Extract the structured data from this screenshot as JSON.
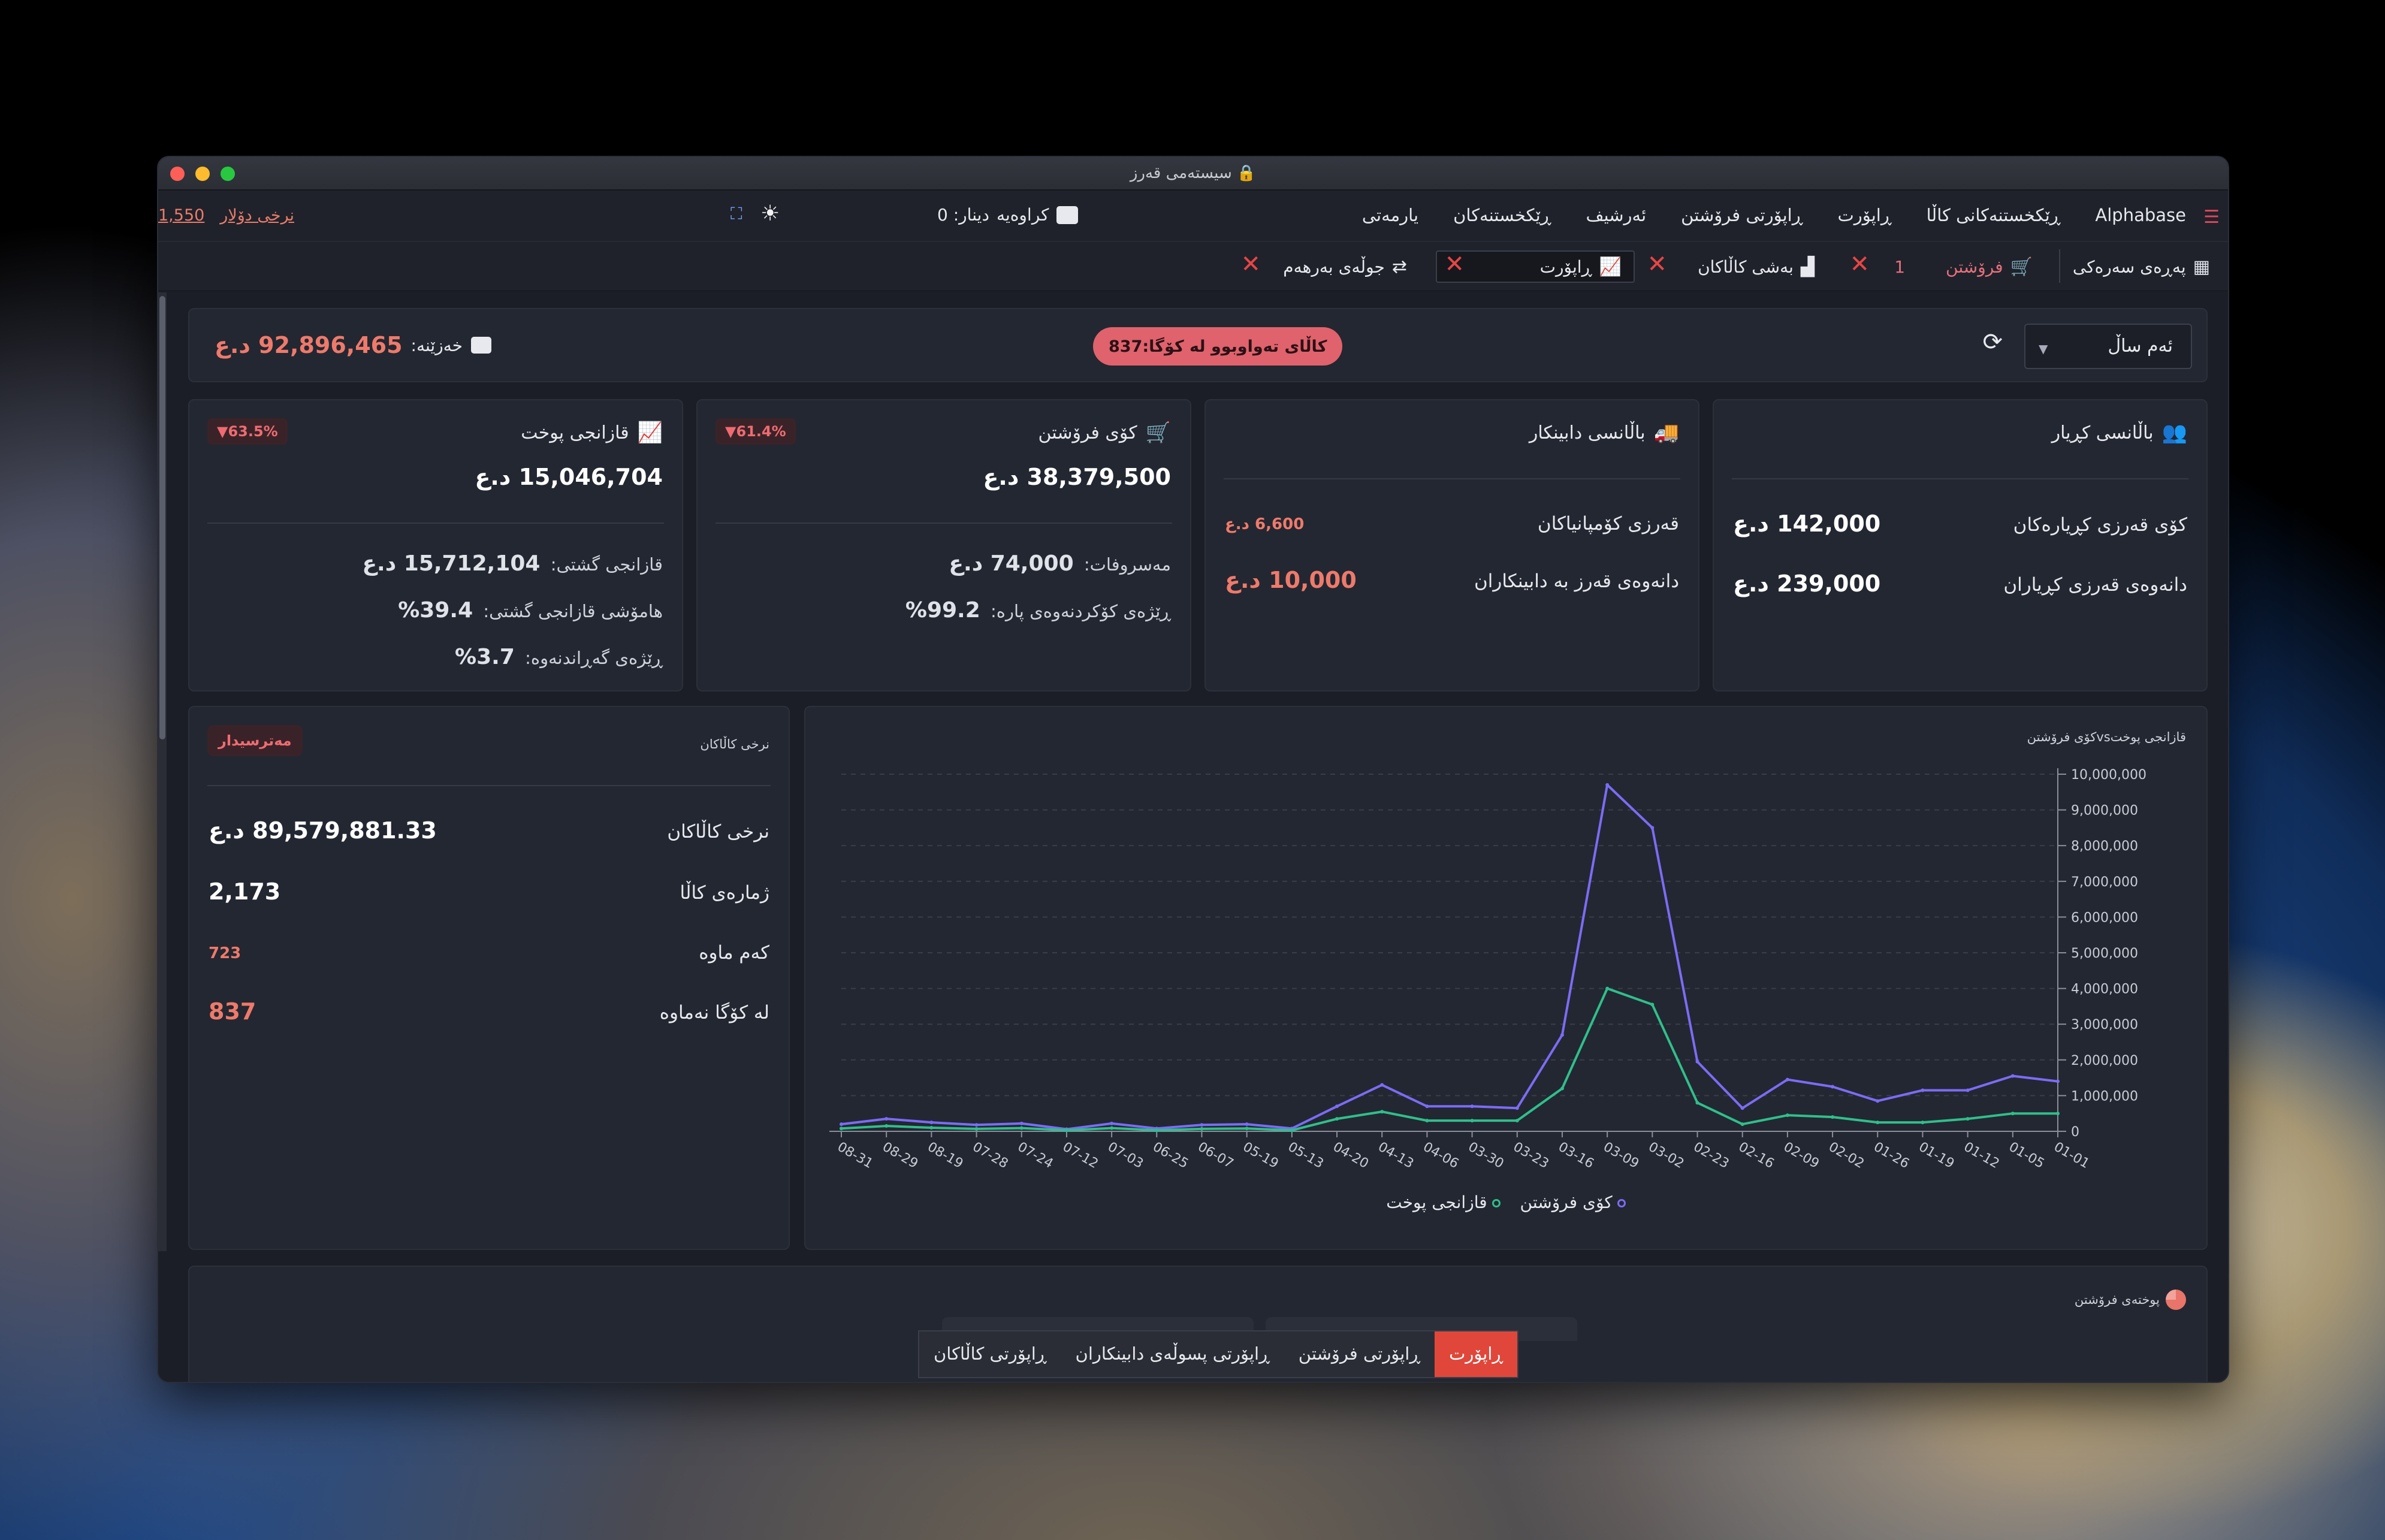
{
  "window": {
    "title": "سیستەمی قەرز"
  },
  "nav": {
    "brand": "Alphabase",
    "items": [
      "ڕێکخستنەکانی کاڵا",
      "ڕاپۆرت",
      "ڕاپۆرتی فرۆشتن",
      "ئەرشیف",
      "ڕێکخستنەکان",
      "یارمەتی"
    ],
    "cashbox_label": "کراوەیە",
    "cashbox_value": "دینار: 0",
    "dollar_label": "نرخی دۆلار",
    "dollar_value": "1,550"
  },
  "tabs": {
    "home": "پەڕەی سەرەکی",
    "sales": "فرۆشتن",
    "sales_count": "1",
    "goods": "بەشی کاڵاکان",
    "report": "ڕاپۆرت",
    "movement": "جوڵەی بەرهەم"
  },
  "summary": {
    "period": "ئەم ساڵ",
    "out_of_stock": "کاڵای تەواوبوو لە کۆگا:837",
    "treasury_label": "خەزێنە:",
    "treasury_value": "92,896,465 د.ع"
  },
  "cards": {
    "customer_balance": {
      "title": "باڵانسی کڕیار",
      "rows": [
        {
          "label": "کۆی قەرزی کڕیارەکان",
          "value": "142,000 د.ع"
        },
        {
          "label": "دانەوەی قەرزی کڕیاران",
          "value": "239,000 د.ع"
        }
      ]
    },
    "supplier_balance": {
      "title": "باڵانسی دابینکار",
      "rows": [
        {
          "label": "قەرزی کۆمپانیاکان",
          "value": "6,600 د.ع"
        },
        {
          "label": "دانەوەی قەرز بە دابینکاران",
          "value": "10,000 د.ع"
        }
      ]
    },
    "total_sales": {
      "title": "کۆی فرۆشتن",
      "badge": "▼61.4%",
      "main": "38,379,500 د.ع",
      "expenses_label": "مەسروفات:",
      "expenses_value": "74,000 د.ع",
      "collection_label": "ڕێژەی کۆکردنەوەی پارە:",
      "collection_value": "99.2%"
    },
    "net_profit": {
      "title": "قازانجی پوخت",
      "badge": "▼63.5%",
      "main": "15,046,704 د.ع",
      "gross_label": "قازانجی گشتی:",
      "gross_value": "15,712,104 د.ع",
      "margin_label": "هامۆشی قازانجی گشتی:",
      "margin_value": "39.4%",
      "return_label": "ڕێژەی گەڕاندنەوە:",
      "return_value": "3.7%"
    }
  },
  "goods": {
    "title": "نرخی کاڵاکان",
    "badge": "مەترسیدار",
    "rows": [
      {
        "label": "نرخی کاڵاکان",
        "value": "89,579,881.33 د.ع"
      },
      {
        "label": "ژمارەی کاڵا",
        "value": "2,173"
      },
      {
        "label": "کەم ماوە",
        "value": "723"
      },
      {
        "label": "لە کۆگا نەماوە",
        "value": "837"
      }
    ]
  },
  "chart_data": {
    "type": "line",
    "title": "کۆی فرۆشتنvsقازانجی پوخت",
    "x": [
      "08-31",
      "08-29",
      "08-19",
      "07-28",
      "07-24",
      "07-12",
      "07-03",
      "06-25",
      "06-07",
      "05-19",
      "05-13",
      "04-20",
      "04-13",
      "04-06",
      "03-30",
      "03-23",
      "03-16",
      "03-09",
      "03-02",
      "02-23",
      "02-16",
      "02-09",
      "02-02",
      "01-26",
      "01-19",
      "01-12",
      "01-05",
      "01-01"
    ],
    "series": [
      {
        "name": "کۆی فرۆشتن",
        "color": "#7b6cf6",
        "values": [
          200000,
          350000,
          250000,
          180000,
          220000,
          60000,
          220000,
          80000,
          180000,
          200000,
          80000,
          700000,
          1300000,
          700000,
          700000,
          650000,
          2700000,
          9700000,
          8500000,
          1950000,
          650000,
          1450000,
          1250000,
          850000,
          1150000,
          1150000,
          1550000,
          1400000
        ]
      },
      {
        "name": "قازانجی پوخت",
        "color": "#2fbf8b",
        "values": [
          80000,
          150000,
          100000,
          70000,
          90000,
          30000,
          90000,
          30000,
          70000,
          80000,
          30000,
          350000,
          550000,
          300000,
          300000,
          300000,
          1200000,
          4000000,
          3550000,
          800000,
          200000,
          450000,
          400000,
          250000,
          250000,
          350000,
          500000,
          500000
        ]
      }
    ],
    "yticks": [
      "0",
      "1,000,000",
      "2,000,000",
      "3,000,000",
      "4,000,000",
      "5,000,000",
      "6,000,000",
      "7,000,000",
      "8,000,000",
      "9,000,000",
      "10,000,000"
    ],
    "ylim": [
      0,
      10000000
    ],
    "grid": true,
    "legend_position": "bottom"
  },
  "bottom": {
    "section_title": "پوختەی فرۆشتن",
    "tabs": [
      "ڕاپۆرت",
      "ڕاپۆرتی فرۆشتن",
      "ڕاپۆرتی پسوڵەی دابینکاران",
      "ڕاپۆرتی کاڵاکان"
    ]
  }
}
